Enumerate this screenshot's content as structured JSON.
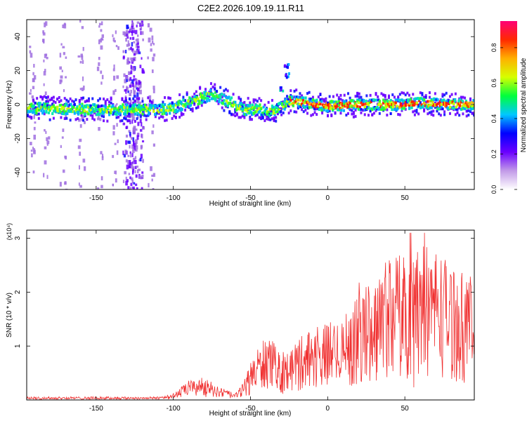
{
  "title": "C2E2.2026.109.19.11.R11",
  "colors": {
    "signal": "#f03030",
    "axis": "#000000",
    "background": "#ffffff",
    "colormap": [
      "#ffffff",
      "#c29ae8",
      "#6a00ff",
      "#0000ff",
      "#00c8ff",
      "#00ff3c",
      "#d6ff00",
      "#ffb000",
      "#ff2a00",
      "#ff0077"
    ]
  },
  "chart_data": [
    {
      "type": "heatmap",
      "name": "spectrogram",
      "xlabel": "Height of straight line (km)",
      "ylabel": "Frequency (Hz)",
      "xlim": [
        -195,
        95
      ],
      "ylim": [
        -50,
        50
      ],
      "x_ticks": [
        -150,
        -100,
        -50,
        0,
        50
      ],
      "y_ticks": [
        -40,
        -20,
        0,
        20,
        40
      ],
      "ridge": [
        [
          -195,
          -2
        ],
        [
          -150,
          -3
        ],
        [
          -110,
          -3
        ],
        [
          -100,
          -2
        ],
        [
          -85,
          3
        ],
        [
          -75,
          6
        ],
        [
          -65,
          2
        ],
        [
          -55,
          -3
        ],
        [
          -45,
          -3
        ],
        [
          -35,
          -4
        ],
        [
          -25,
          2
        ],
        [
          -15,
          1
        ],
        [
          0,
          -1
        ],
        [
          25,
          0
        ],
        [
          50,
          0
        ],
        [
          60,
          1
        ],
        [
          75,
          0
        ],
        [
          95,
          0
        ]
      ],
      "spurs": [
        [
          -30,
          10
        ],
        [
          -27,
          18
        ],
        [
          -27,
          24
        ]
      ],
      "colorbar": {
        "label": "Normalized spectral amplitude",
        "range": [
          0.0,
          0.95
        ],
        "ticks": [
          0.0,
          0.2,
          0.4,
          0.6,
          0.8
        ]
      }
    },
    {
      "type": "line",
      "name": "snr",
      "xlabel": "Height of straight line (km)",
      "ylabel": "SNR (10 * v/v)",
      "scale_note": "(x10⁴)",
      "xlim": [
        -195,
        95
      ],
      "ylim": [
        0,
        3.15
      ],
      "x_ticks": [
        -150,
        -100,
        -50,
        0,
        50
      ],
      "y_ticks": [
        1,
        2,
        3
      ],
      "envelope": [
        [
          -195,
          0.04
        ],
        [
          -150,
          0.04
        ],
        [
          -110,
          0.05
        ],
        [
          -100,
          0.1
        ],
        [
          -90,
          0.3
        ],
        [
          -80,
          0.35
        ],
        [
          -70,
          0.2
        ],
        [
          -60,
          0.1
        ],
        [
          -55,
          0.25
        ],
        [
          -50,
          0.6
        ],
        [
          -45,
          0.8
        ],
        [
          -40,
          1.0
        ],
        [
          -35,
          0.9
        ],
        [
          -30,
          0.75
        ],
        [
          -25,
          0.75
        ],
        [
          -20,
          0.9
        ],
        [
          -15,
          1.1
        ],
        [
          -10,
          1.1
        ],
        [
          0,
          1.2
        ],
        [
          10,
          1.3
        ],
        [
          20,
          1.6
        ],
        [
          30,
          1.9
        ],
        [
          40,
          2.3
        ],
        [
          50,
          2.25
        ],
        [
          60,
          2.4
        ],
        [
          70,
          2.4
        ],
        [
          80,
          2.1
        ],
        [
          95,
          1.9
        ]
      ]
    }
  ]
}
